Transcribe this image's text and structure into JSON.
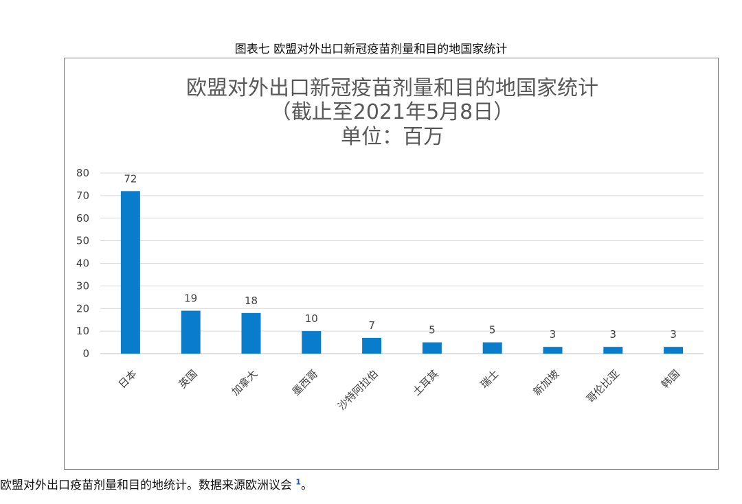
{
  "figure_title": "图表七 欧盟对外出口新冠疫苗剂量和目的地国家统计",
  "caption": {
    "text": "欧盟对外出口疫苗剂量和目的地统计。数据来源欧洲议会",
    "footnote": "1",
    "end": "。"
  },
  "chart_data": {
    "type": "bar",
    "title": [
      "欧盟对外出口新冠疫苗剂量和目的地国家统计",
      "（截止至2021年5月8日）",
      "单位：百万"
    ],
    "categories": [
      "日本",
      "英国",
      "加拿大",
      "墨西哥",
      "沙特阿拉伯",
      "土耳其",
      "瑞士",
      "新加坡",
      "哥伦比亚",
      "韩国"
    ],
    "values": [
      72,
      19,
      18,
      10,
      7,
      5,
      5,
      3,
      3,
      3
    ],
    "ylim": [
      0,
      80
    ],
    "yticks": [
      "0",
      "10",
      "20",
      "30",
      "40",
      "50",
      "60",
      "70",
      "80"
    ],
    "grid": true,
    "bar_color": "#0a7ccc",
    "grid_color": "#d9d9d9"
  }
}
